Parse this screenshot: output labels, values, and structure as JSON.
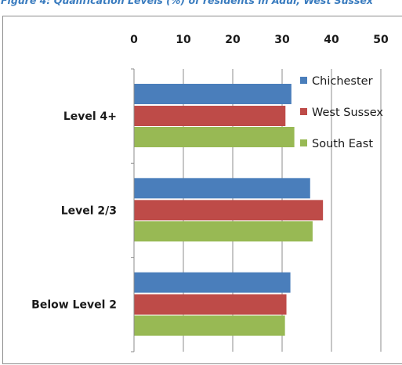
{
  "figure": {
    "title": "Figure 4: Qualification Levels (%) of residents in Adur, West Sussex"
  },
  "chart_data": {
    "type": "bar",
    "orientation": "horizontal",
    "axis_position": "top",
    "title": "",
    "xlabel": "",
    "ylabel": "",
    "xlim": [
      0,
      50
    ],
    "x_ticks": [
      0,
      10,
      20,
      30,
      40,
      50
    ],
    "grid": true,
    "legend_position": "top-right",
    "categories": [
      "Level 4+",
      "Level 2/3",
      "Below Level 2"
    ],
    "series": [
      {
        "name": "Chichester",
        "color": "#4a7ebb",
        "values": [
          31.8,
          35.6,
          31.6
        ]
      },
      {
        "name": "West Sussex",
        "color": "#be4b48",
        "values": [
          30.6,
          38.2,
          30.8
        ]
      },
      {
        "name": "South East",
        "color": "#98b954",
        "values": [
          32.4,
          36.1,
          30.5
        ]
      }
    ]
  }
}
